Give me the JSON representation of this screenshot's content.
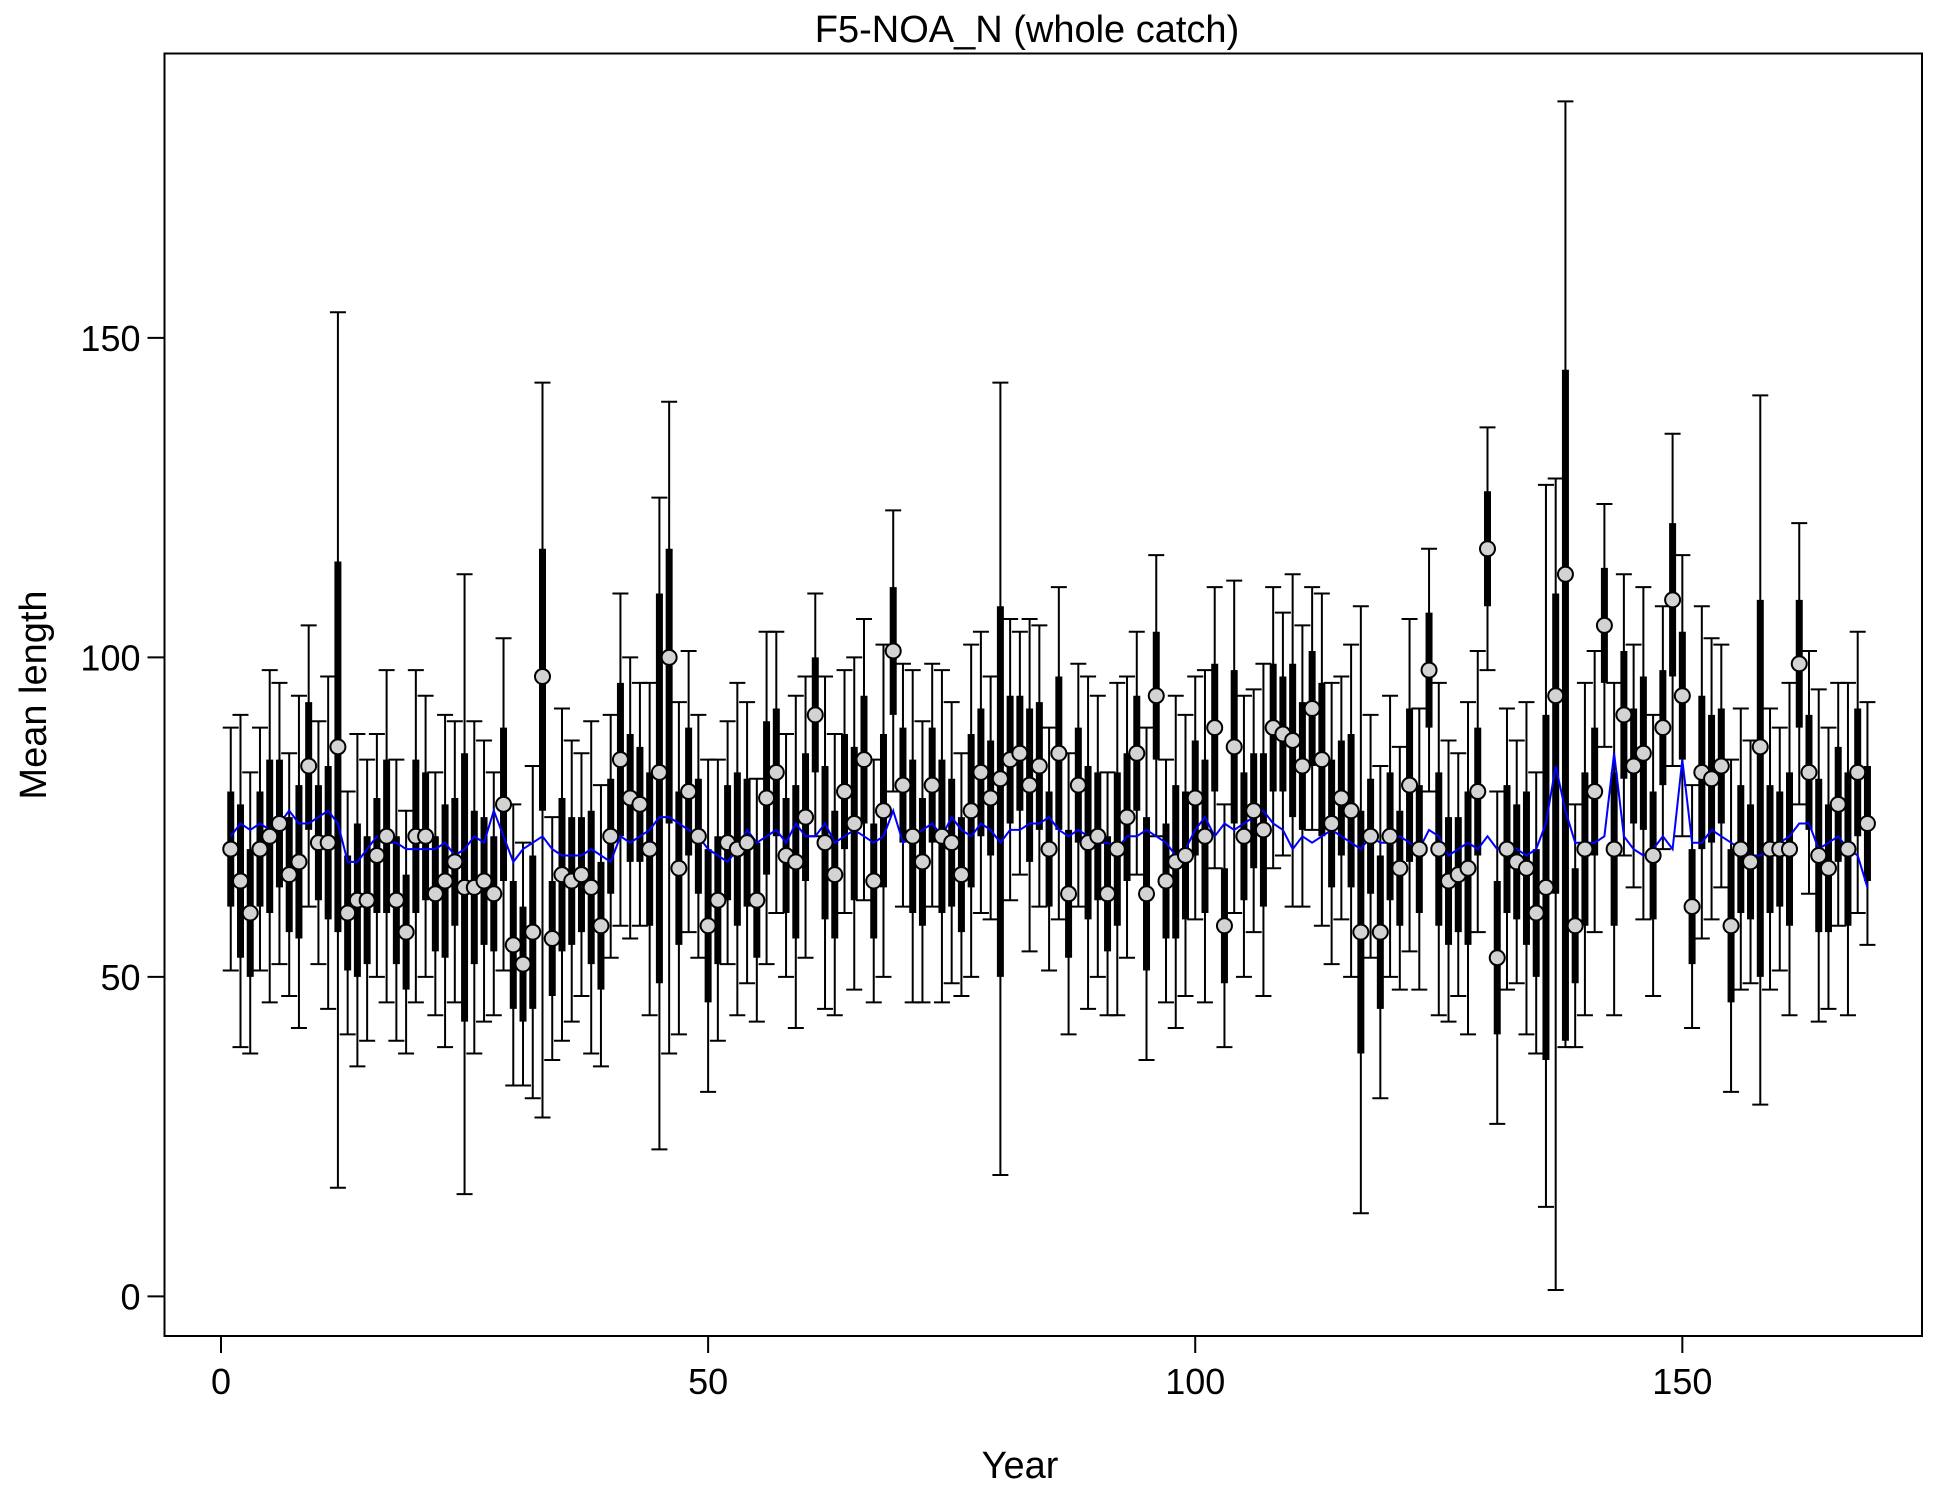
{
  "chart_data": {
    "type": "errorbar",
    "title": "F5-NOA_N (whole catch)",
    "x_label": "Year",
    "y_label": "Mean length",
    "xlim": [
      -5.8,
      174.6
    ],
    "ylim": [
      -6.2,
      194.5
    ],
    "xticks": [
      0,
      50,
      100,
      150
    ],
    "yticks": [
      0,
      50,
      100,
      150
    ],
    "point_color": "#d3d3d3",
    "bar_color": "#000000",
    "expected_color": "#0000ff",
    "x": [
      1,
      2,
      3,
      4,
      5,
      6,
      7,
      8,
      9,
      10,
      11,
      12,
      13,
      14,
      15,
      16,
      17,
      18,
      19,
      20,
      21,
      22,
      23,
      24,
      25,
      26,
      27,
      28,
      29,
      30,
      31,
      32,
      33,
      34,
      35,
      36,
      37,
      38,
      39,
      40,
      41,
      42,
      43,
      44,
      45,
      46,
      47,
      48,
      49,
      50,
      51,
      52,
      53,
      54,
      55,
      56,
      57,
      58,
      59,
      60,
      61,
      62,
      63,
      64,
      65,
      66,
      67,
      68,
      69,
      70,
      71,
      72,
      73,
      74,
      75,
      76,
      77,
      78,
      79,
      80,
      81,
      82,
      83,
      84,
      85,
      86,
      87,
      88,
      89,
      90,
      91,
      92,
      93,
      94,
      95,
      96,
      97,
      98,
      99,
      100,
      101,
      102,
      103,
      104,
      105,
      106,
      107,
      108,
      109,
      110,
      111,
      112,
      113,
      114,
      115,
      116,
      117,
      118,
      119,
      120,
      121,
      122,
      123,
      124,
      125,
      126,
      127,
      128,
      129,
      130,
      131,
      132,
      133,
      134,
      135,
      136,
      137,
      138,
      139,
      140,
      141,
      142,
      143,
      144,
      145,
      146,
      147,
      148,
      149,
      150,
      151,
      152,
      153,
      154,
      155,
      156,
      157,
      158,
      159,
      160,
      161,
      162,
      163,
      164,
      165,
      166,
      167,
      168,
      169
    ],
    "values": [
      70,
      65,
      60,
      70,
      72,
      74,
      66,
      68,
      83,
      71,
      71,
      86,
      60,
      62,
      62,
      69,
      72,
      62,
      57,
      72,
      72,
      63,
      65,
      68,
      64,
      64,
      65,
      63,
      77,
      55,
      52,
      57,
      97,
      56,
      66,
      65,
      66,
      64,
      58,
      72,
      84,
      78,
      77,
      70,
      82,
      100,
      67,
      79,
      72,
      58,
      62,
      71,
      70,
      71,
      62,
      78,
      82,
      69,
      68,
      75,
      91,
      71,
      66,
      79,
      74,
      84,
      65,
      76,
      101,
      80,
      72,
      68,
      80,
      72,
      71,
      66,
      76,
      82,
      78,
      81,
      84,
      85,
      80,
      83,
      70,
      85,
      63,
      80,
      71,
      72,
      63,
      70,
      75,
      85,
      63,
      94,
      65,
      68,
      69,
      78,
      72,
      89,
      58,
      86,
      72,
      76,
      73,
      89,
      88,
      87,
      83,
      92,
      84,
      74,
      78,
      76,
      57,
      72,
      57,
      72,
      67,
      80,
      70,
      98,
      70,
      65,
      66,
      67,
      79,
      117,
      53,
      70,
      68,
      67,
      60,
      64,
      94,
      113,
      58,
      70,
      79,
      105,
      70,
      91,
      83,
      85,
      69,
      89,
      109,
      94,
      61,
      82,
      81,
      83,
      58,
      70,
      68,
      86,
      70,
      70,
      70,
      99,
      82,
      69,
      67,
      77,
      70,
      82,
      74
    ],
    "inner_low": [
      61,
      53,
      50,
      61,
      60,
      64,
      57,
      56,
      73,
      62,
      59,
      57,
      51,
      50,
      52,
      60,
      60,
      52,
      48,
      60,
      62,
      54,
      53,
      58,
      43,
      52,
      55,
      54,
      65,
      45,
      43,
      45,
      76,
      47,
      54,
      55,
      57,
      52,
      48,
      63,
      72,
      68,
      68,
      58,
      49,
      74,
      55,
      69,
      63,
      46,
      52,
      62,
      58,
      61,
      53,
      66,
      72,
      60,
      56,
      65,
      82,
      59,
      56,
      70,
      62,
      74,
      56,
      64,
      91,
      71,
      60,
      58,
      71,
      60,
      61,
      57,
      64,
      72,
      69,
      50,
      74,
      76,
      68,
      73,
      61,
      73,
      53,
      71,
      59,
      62,
      54,
      58,
      65,
      76,
      51,
      84,
      56,
      56,
      59,
      69,
      60,
      79,
      49,
      74,
      62,
      67,
      61,
      79,
      79,
      75,
      73,
      83,
      72,
      64,
      69,
      64,
      38,
      63,
      45,
      62,
      58,
      68,
      60,
      89,
      58,
      55,
      57,
      55,
      69,
      108,
      41,
      60,
      59,
      55,
      50,
      37,
      63,
      40,
      49,
      58,
      69,
      96,
      58,
      81,
      74,
      73,
      59,
      80,
      97,
      84,
      52,
      70,
      71,
      74,
      46,
      60,
      59,
      50,
      60,
      61,
      58,
      89,
      73,
      57,
      57,
      68,
      58,
      72,
      65
    ],
    "inner_high": [
      79,
      77,
      70,
      79,
      84,
      84,
      75,
      80,
      93,
      80,
      83,
      115,
      69,
      74,
      72,
      78,
      84,
      72,
      66,
      84,
      82,
      72,
      77,
      78,
      85,
      76,
      75,
      72,
      89,
      65,
      61,
      69,
      117,
      65,
      78,
      75,
      75,
      76,
      68,
      81,
      96,
      88,
      86,
      82,
      110,
      117,
      79,
      89,
      81,
      70,
      72,
      80,
      82,
      81,
      71,
      90,
      92,
      78,
      80,
      85,
      100,
      83,
      76,
      88,
      86,
      94,
      74,
      88,
      111,
      89,
      84,
      78,
      89,
      84,
      81,
      75,
      88,
      92,
      87,
      108,
      94,
      94,
      92,
      93,
      79,
      97,
      73,
      89,
      83,
      82,
      72,
      82,
      85,
      94,
      75,
      104,
      74,
      80,
      79,
      87,
      84,
      99,
      67,
      98,
      82,
      85,
      85,
      99,
      97,
      99,
      93,
      101,
      96,
      84,
      87,
      88,
      76,
      81,
      69,
      82,
      76,
      92,
      80,
      107,
      82,
      75,
      75,
      79,
      89,
      126,
      65,
      80,
      77,
      79,
      70,
      91,
      110,
      145,
      67,
      82,
      89,
      114,
      82,
      101,
      92,
      97,
      79,
      98,
      121,
      104,
      70,
      94,
      91,
      92,
      70,
      80,
      77,
      109,
      80,
      79,
      82,
      109,
      91,
      81,
      77,
      86,
      82,
      92,
      83
    ],
    "outer_low": [
      51,
      39,
      38,
      51,
      46,
      52,
      47,
      42,
      61,
      52,
      45,
      17,
      41,
      36,
      40,
      50,
      46,
      40,
      38,
      46,
      50,
      44,
      39,
      46,
      16,
      38,
      43,
      44,
      51,
      33,
      33,
      31,
      28,
      37,
      40,
      43,
      47,
      38,
      36,
      53,
      58,
      56,
      58,
      44,
      23,
      38,
      41,
      57,
      53,
      32,
      40,
      52,
      44,
      49,
      43,
      52,
      60,
      50,
      42,
      53,
      72,
      45,
      44,
      60,
      48,
      62,
      46,
      50,
      79,
      61,
      46,
      46,
      61,
      46,
      49,
      47,
      50,
      60,
      59,
      19,
      62,
      66,
      54,
      61,
      51,
      59,
      41,
      61,
      45,
      50,
      44,
      44,
      53,
      66,
      37,
      72,
      46,
      42,
      47,
      59,
      46,
      67,
      39,
      60,
      50,
      57,
      47,
      67,
      69,
      61,
      61,
      73,
      58,
      52,
      59,
      50,
      13,
      53,
      31,
      50,
      48,
      54,
      48,
      79,
      44,
      43,
      47,
      41,
      57,
      98,
      27,
      48,
      49,
      41,
      38,
      14,
      1,
      39,
      39,
      44,
      57,
      86,
      44,
      69,
      64,
      59,
      47,
      70,
      83,
      72,
      42,
      56,
      59,
      64,
      32,
      48,
      49,
      30,
      48,
      51,
      44,
      77,
      63,
      43,
      45,
      58,
      44,
      60,
      55
    ],
    "outer_high": [
      89,
      91,
      82,
      89,
      98,
      96,
      85,
      94,
      105,
      90,
      97,
      154,
      79,
      88,
      84,
      88,
      98,
      84,
      76,
      98,
      94,
      82,
      91,
      90,
      113,
      90,
      87,
      82,
      103,
      77,
      71,
      83,
      143,
      75,
      92,
      87,
      85,
      90,
      80,
      91,
      110,
      100,
      96,
      96,
      125,
      140,
      93,
      101,
      91,
      84,
      84,
      90,
      96,
      93,
      81,
      104,
      104,
      88,
      94,
      97,
      110,
      97,
      88,
      98,
      100,
      106,
      84,
      102,
      123,
      99,
      98,
      90,
      99,
      98,
      93,
      85,
      102,
      104,
      97,
      143,
      106,
      104,
      106,
      105,
      89,
      111,
      85,
      99,
      97,
      94,
      82,
      96,
      97,
      104,
      89,
      116,
      84,
      94,
      91,
      97,
      98,
      111,
      77,
      112,
      94,
      95,
      99,
      111,
      107,
      113,
      105,
      111,
      110,
      96,
      97,
      102,
      108,
      91,
      83,
      94,
      86,
      106,
      92,
      117,
      96,
      87,
      85,
      93,
      101,
      136,
      79,
      92,
      87,
      93,
      82,
      127,
      128,
      187,
      77,
      96,
      101,
      124,
      96,
      113,
      102,
      111,
      91,
      108,
      135,
      116,
      80,
      108,
      103,
      102,
      84,
      92,
      87,
      141,
      92,
      89,
      96,
      121,
      101,
      95,
      89,
      96,
      96,
      104,
      93
    ],
    "expected": [
      72,
      74,
      73,
      74,
      73,
      74,
      76,
      74,
      74,
      75,
      76,
      74,
      68,
      68,
      70,
      72,
      71,
      71,
      70,
      70,
      70,
      70,
      71,
      69,
      70,
      72,
      71,
      76,
      72,
      68,
      70,
      71,
      72,
      70,
      69,
      69,
      69,
      70,
      69,
      68,
      72,
      71,
      72,
      73,
      75,
      75,
      74,
      73,
      72,
      70,
      69,
      68,
      70,
      73,
      71,
      72,
      73,
      71,
      74,
      72,
      72,
      74,
      71,
      72,
      73,
      72,
      71,
      72,
      76,
      71,
      72,
      73,
      74,
      72,
      75,
      73,
      72,
      74,
      73,
      71,
      73,
      73,
      74,
      74,
      75,
      73,
      72,
      73,
      72,
      71,
      71,
      70,
      72,
      72,
      73,
      72,
      71,
      69,
      70,
      73,
      75,
      72,
      74,
      73,
      74,
      75,
      76,
      74,
      73,
      70,
      72,
      71,
      72,
      73,
      72,
      71,
      70,
      72,
      71,
      71,
      72,
      71,
      70,
      73,
      72,
      69,
      70,
      71,
      70,
      72,
      70,
      71,
      70,
      69,
      70,
      74,
      83,
      76,
      71,
      71,
      71,
      72,
      85,
      72,
      70,
      69,
      70,
      72,
      70,
      84,
      71,
      71,
      73,
      72,
      71,
      70,
      69,
      69,
      70,
      71,
      72,
      74,
      74,
      70,
      71,
      72,
      70,
      69,
      64
    ]
  }
}
